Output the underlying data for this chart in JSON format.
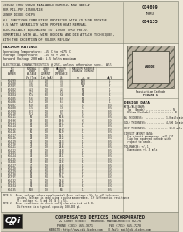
{
  "page_bg": "#ede8d8",
  "header_bg": "#ddd8c4",
  "footer_bg": "#d0cbb8",
  "border_color": "#888878",
  "text_color": "#1a1818",
  "table_line_color": "#666658",
  "logo_bg": "#1a1818",
  "logo_text_color": "#ffffff",
  "title_lines": [
    "ISSUED THRU 00028 AVAILABLE NUMERIC AND JANTXV",
    "PER MIL-PRF-19500/428",
    "ZENER DIODE CHIPS",
    "ALL JUNCTIONS COMPLETELY PROTECTED WITH SILICON DIOXIDE",
    "6.5 WATT CAPABILITY WITH PROPER HEAT REMOVAL",
    "ELECTRICALLY EQUIVALENT TO  19500 THRU P98-01",
    "COMPATIBLE WITH ALL WIRE BONDING AND DIE ATTACH TECHNIQUES,",
    "WITH THE EXCEPTION OF SOLDER REFLOW"
  ],
  "part_numbers": [
    "CD4099",
    "THRU",
    "CD4135"
  ],
  "max_ratings_title": "MAXIMUM RATINGS",
  "max_ratings_lines": [
    "Operating Temperature: -65 C to +175 C",
    "Storage Temperature:   -65 to + 200 C",
    "Forward Voltage 200 mA: 1.5 Volts maximum"
  ],
  "elec_char_title": "ELECTRICAL CHARACTERISTICS @ 25C, unless otherwise spec.  All",
  "table_col_headers_line1": [
    "CDI",
    "NOMINAL",
    "ZENER",
    "MAXIMUM",
    "MAXIMUM REVERSE"
  ],
  "table_col_headers_line2": [
    "PART",
    "ZENER",
    "TEST",
    "ZENER",
    "LEAKAGE CURRENT"
  ],
  "table_col_headers_line3": [
    "NUMBER",
    "VOLTAGE",
    "CURRENT",
    "IMPEDANCE",
    ""
  ],
  "table_col_headers_line4": [
    "",
    "Vz (Typ)",
    "Izt (mA)",
    "Zzt",
    "IR @ VR"
  ],
  "table_data": [
    [
      "CD4099",
      "3.3",
      "1.0",
      "3.5",
      "100",
      "1"
    ],
    [
      "CD4100",
      "3.6",
      "1.0",
      "3.8",
      "100",
      "1"
    ],
    [
      "CD4101",
      "3.9",
      "1.0",
      "4.1",
      "80",
      "1"
    ],
    [
      "CD4102",
      "4.3",
      "1.0",
      "4.6",
      "50",
      "1"
    ],
    [
      "CD4103",
      "4.7",
      "1.0",
      "5.0",
      "20",
      "1"
    ],
    [
      "CD4104",
      "5.1",
      "1.0",
      "5.4",
      "10",
      "1"
    ],
    [
      "CD4105",
      "5.6",
      "1.0",
      "6.0",
      "10",
      "1"
    ],
    [
      "CD4106",
      "6.2",
      "1.0",
      "6.6",
      "10",
      "1"
    ],
    [
      "CD4107",
      "6.8",
      "1.0",
      "7.2",
      "5",
      "0.5"
    ],
    [
      "CD4108",
      "7.5",
      "1.0",
      "7.9",
      "5",
      "0.5"
    ],
    [
      "CD4109",
      "8.2",
      "1.0",
      "8.7",
      "5",
      "0.5"
    ],
    [
      "CD4110",
      "9.1",
      "1.0",
      "9.6",
      "5",
      "0.5"
    ],
    [
      "CD4111",
      "10",
      "1.0",
      "10.6",
      "5",
      "0.5"
    ],
    [
      "CD4112",
      "11",
      "1.0",
      "11.6",
      "2",
      "0.5"
    ],
    [
      "CD4113",
      "12",
      "1.0",
      "12.7",
      "2",
      "0.5"
    ],
    [
      "CD4114",
      "13",
      "1.0",
      "13.7",
      "1",
      "0.5"
    ],
    [
      "CD4115",
      "15",
      "1.0",
      "15.9",
      "1",
      "0.5"
    ],
    [
      "CD4116",
      "16",
      "1.0",
      "16.9",
      "1",
      "0.5"
    ],
    [
      "CD4117",
      "18",
      "1.0",
      "19.1",
      "1",
      "0.5"
    ],
    [
      "CD4118",
      "20",
      "1.0",
      "21.2",
      "1",
      "0.5"
    ],
    [
      "CD4119",
      "22",
      "1.0",
      "23.3",
      "1",
      "0.5"
    ],
    [
      "CD4120",
      "24",
      "1.0",
      "25.4",
      "1",
      "0.5"
    ],
    [
      "CD4121",
      "27",
      "1.0",
      "28.6",
      "1",
      "0.5"
    ],
    [
      "CD4122",
      "30",
      "1.0",
      "31.8",
      "1",
      "0.5"
    ],
    [
      "CD4123",
      "33",
      "1.0",
      "34.9",
      "1",
      "0.5"
    ],
    [
      "CD4124",
      "36",
      "1.0",
      "38.1",
      "1",
      "0.5"
    ],
    [
      "CD4125",
      "39",
      "1.0",
      "41.3",
      "1",
      "0.5"
    ],
    [
      "CD4126",
      "43",
      "1.0",
      "45.5",
      "1",
      "0.5"
    ],
    [
      "CD4127",
      "47",
      "1.0",
      "49.8",
      "1",
      "0.5"
    ],
    [
      "CD4128",
      "51",
      "1.0",
      "54.0",
      "1",
      "0.5"
    ],
    [
      "CD4129",
      "56",
      "1.0",
      "59.3",
      "1",
      "0.5"
    ],
    [
      "CD4130",
      "62",
      "1.0",
      "65.7",
      "1",
      "0.5"
    ],
    [
      "CD4131",
      "68",
      "1.0",
      "72.0",
      "1",
      "0.5"
    ],
    [
      "CD4132",
      "75",
      "1.0",
      "79.4",
      "1",
      "0.5"
    ],
    [
      "CD4133",
      "82",
      "1.0",
      "86.9",
      "1",
      "0.5"
    ],
    [
      "CD4134",
      "91",
      "1.0",
      "96.4",
      "1",
      "0.5"
    ],
    [
      "CD4135",
      "100",
      "1.0",
      "106",
      "1",
      "0.5"
    ]
  ],
  "notes": [
    "NOTE 1:  Zener voltage values equal nominal Zener voltage ± 5% for all tolerance",
    "          grades. Voltage is read using a pulse measurement. If differential resistance",
    "          V = voltage +/- 5 and 10 mV = y 5%.",
    "NOTE 2:  Zener resistance is electrically characterized at 1 B.",
    "          Difference is a typical capacity 100-400 pF."
  ],
  "figure_label1": "Passivation Cathode",
  "figure_label2": "FIGURE 1",
  "design_data_title": "DESIGN DATA",
  "design_data_lines": [
    "METAL/ALUMINUM:",
    "  Top  (Anode) .................. N",
    "  Bottom (Cathode) ............... N",
    "",
    "AL THICKNESS:  ............. 1.0 mils min",
    "",
    "GOLD THICKNESS: ............ 4,500 In min",
    "",
    "CHIP THICKNESS:  ............. 10.0 mils",
    "",
    "CIRCUIT LAYOUT DATA:",
    "  For circuit parameters, call CDI.",
    "  Chip has squarred cathode with",
    "  respect to anode.",
    "",
    "TOLERANCES: +/- 1",
    "  Dimensions +/- 3 mils"
  ],
  "anode_label": "ANODE",
  "company_name": "COMPENSATED DEVICES INCORPORATED",
  "company_address": "22 COREY STREET   MELROSE, MASSACHUSETTS 02176",
  "company_phone": "PHONE (781) 665-1071         FAX (781) 665-7278",
  "company_web": "WEBSITE: http://www.cdi-diodes.com    E-Mail: mail@cdi-diodes.com"
}
